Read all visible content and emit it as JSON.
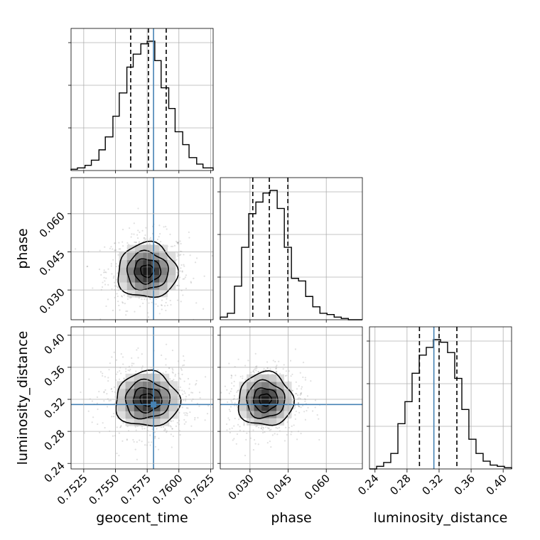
{
  "chart_data": {
    "type": "corner",
    "parameters": [
      {
        "name": "geocent_time",
        "label": "geocent_time",
        "range": [
          0.7515,
          0.7627
        ],
        "ticks": [
          0.7525,
          0.755,
          0.7575,
          0.76,
          0.7625
        ],
        "tick_labels": [
          "0.7525",
          "0.7550",
          "0.7575",
          "0.7600",
          "0.7625"
        ],
        "truth": 0.758,
        "quantiles": [
          0.7562,
          0.7576,
          0.759
        ],
        "hist_bins": [
          0.7515,
          0.752,
          0.7526,
          0.7531,
          0.7537,
          0.7542,
          0.7548,
          0.7553,
          0.7559,
          0.7564,
          0.757,
          0.7575,
          0.7581,
          0.7586,
          0.7592,
          0.7597,
          0.7603,
          0.7608,
          0.7614,
          0.7619,
          0.7627
        ],
        "hist_counts": [
          0.01,
          0.02,
          0.04,
          0.08,
          0.16,
          0.26,
          0.42,
          0.6,
          0.8,
          0.9,
          0.98,
          1.0,
          0.85,
          0.64,
          0.48,
          0.3,
          0.2,
          0.1,
          0.05,
          0.02
        ]
      },
      {
        "name": "phase",
        "label": "phase",
        "range": [
          0.0183,
          0.0742
        ],
        "ticks": [
          0.03,
          0.045,
          0.06
        ],
        "tick_labels": [
          "0.030",
          "0.045",
          "0.060"
        ],
        "truth": null,
        "quantiles": [
          0.0311,
          0.0376,
          0.0449
        ],
        "hist_bins": [
          0.0183,
          0.0211,
          0.0239,
          0.0267,
          0.0295,
          0.0323,
          0.0351,
          0.0379,
          0.0407,
          0.0435,
          0.0463,
          0.0491,
          0.0519,
          0.0547,
          0.0575,
          0.0603,
          0.0631,
          0.0659,
          0.0687,
          0.0715,
          0.0742
        ],
        "hist_counts": [
          0.02,
          0.05,
          0.26,
          0.56,
          0.82,
          0.91,
          0.98,
          1.0,
          0.86,
          0.56,
          0.32,
          0.3,
          0.18,
          0.1,
          0.05,
          0.04,
          0.02,
          0.01,
          0.0,
          0.0
        ]
      },
      {
        "name": "luminosity_distance",
        "label": "luminosity_distance",
        "range": [
          0.2331,
          0.4105
        ],
        "ticks": [
          0.24,
          0.28,
          0.32,
          0.36,
          0.4
        ],
        "tick_labels": [
          "0.24",
          "0.28",
          "0.32",
          "0.36",
          "0.40"
        ],
        "truth": 0.3135,
        "quantiles": [
          0.2955,
          0.32,
          0.3422
        ],
        "hist_bins": [
          0.2331,
          0.242,
          0.2508,
          0.2597,
          0.2686,
          0.2774,
          0.2863,
          0.2952,
          0.304,
          0.3129,
          0.3218,
          0.3306,
          0.3395,
          0.3484,
          0.3572,
          0.3661,
          0.375,
          0.3838,
          0.3927,
          0.4016,
          0.4105
        ],
        "hist_counts": [
          0.0,
          0.02,
          0.05,
          0.12,
          0.35,
          0.52,
          0.74,
          0.88,
          0.94,
          1.0,
          0.98,
          0.9,
          0.7,
          0.46,
          0.23,
          0.12,
          0.06,
          0.03,
          0.02,
          0.01
        ]
      }
    ],
    "pairs": [
      {
        "x": "geocent_time",
        "y": "phase",
        "center": [
          0.7575,
          0.0375
        ],
        "sigma": [
          0.0013,
          0.006
        ],
        "levels": [
          0.4,
          0.8,
          1.25,
          1.8
        ]
      },
      {
        "x": "geocent_time",
        "y": "luminosity_distance",
        "center": [
          0.7575,
          0.3195
        ],
        "sigma": [
          0.0014,
          0.019
        ],
        "levels": [
          0.4,
          0.8,
          1.25,
          1.8
        ]
      },
      {
        "x": "phase",
        "y": "luminosity_distance",
        "center": [
          0.036,
          0.3195
        ],
        "sigma": [
          0.006,
          0.0185
        ],
        "levels": [
          0.4,
          0.8,
          1.25,
          1.8
        ]
      }
    ],
    "grid": true,
    "colors": {
      "truth": "#4682b4",
      "hist": "#000000",
      "scatter": "#000000"
    }
  }
}
